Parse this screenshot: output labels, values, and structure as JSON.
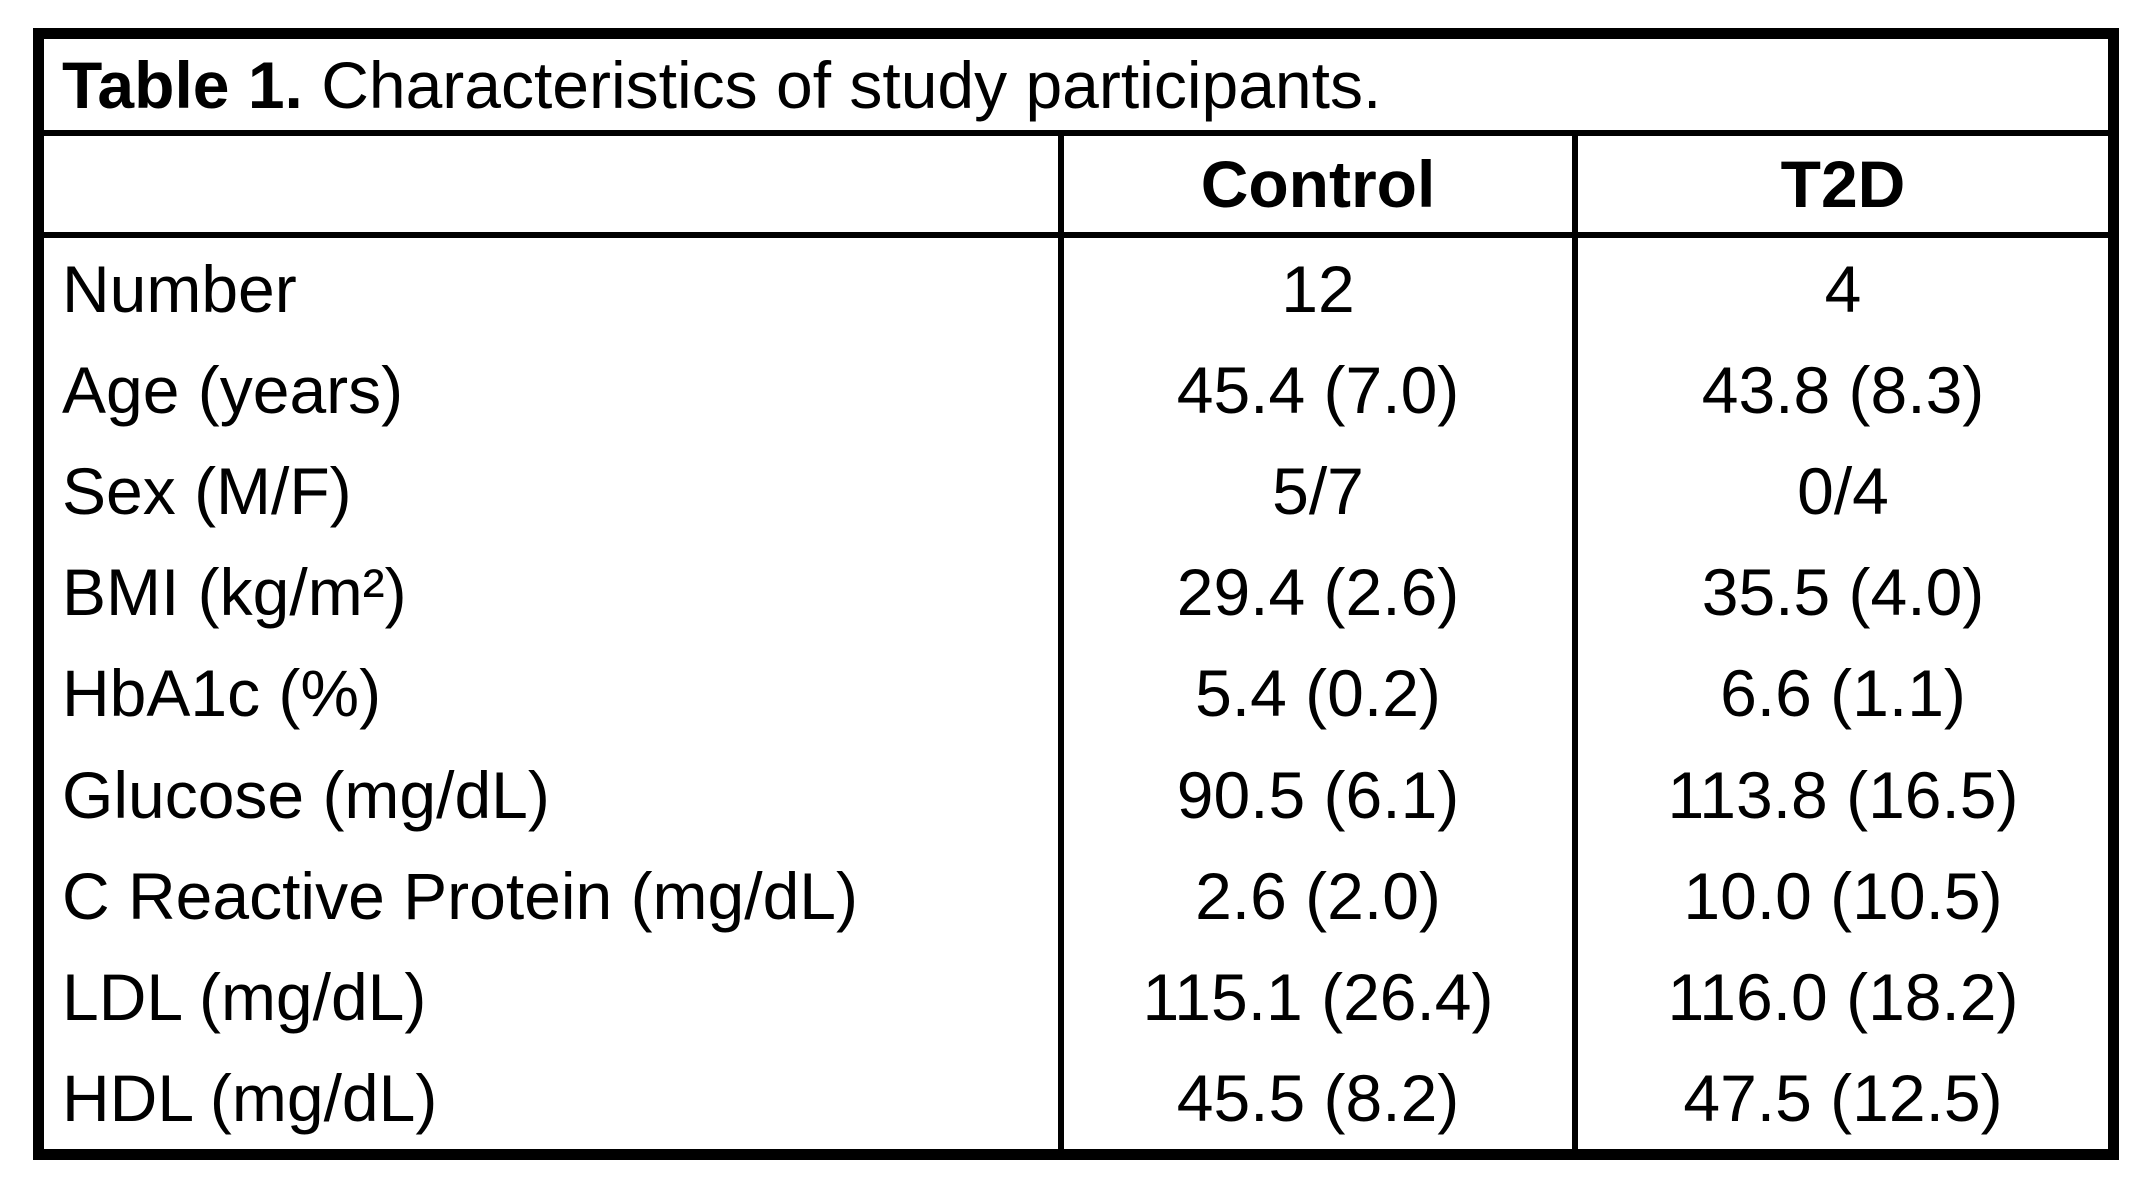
{
  "colors": {
    "text": "#000000",
    "border": "#000000",
    "background": "#ffffff"
  },
  "table": {
    "title_bold": "Table 1.",
    "title_rest": " Characteristics of study participants.",
    "columns": [
      "Control",
      "T2D"
    ],
    "rows": [
      {
        "label": "Number",
        "control": "12",
        "t2d": "4"
      },
      {
        "label": "Age (years)",
        "control": "45.4 (7.0)",
        "t2d": "43.8 (8.3)"
      },
      {
        "label": "Sex (M/F)",
        "control": "5/7",
        "t2d": "0/4"
      },
      {
        "label": "BMI (kg/m²)",
        "control": "29.4 (2.6)",
        "t2d": "35.5 (4.0)"
      },
      {
        "label": "HbA1c (%)",
        "control": "5.4 (0.2)",
        "t2d": "6.6 (1.1)"
      },
      {
        "label": "Glucose (mg/dL)",
        "control": "90.5 (6.1)",
        "t2d": "113.8 (16.5)"
      },
      {
        "label": "C Reactive Protein (mg/dL)",
        "control": "2.6 (2.0)",
        "t2d": "10.0 (10.5)"
      },
      {
        "label": "LDL (mg/dL)",
        "control": "115.1 (26.4)",
        "t2d": "116.0 (18.2)"
      },
      {
        "label": "HDL (mg/dL)",
        "control": "45.5 (8.2)",
        "t2d": "47.5 (12.5)"
      }
    ]
  }
}
